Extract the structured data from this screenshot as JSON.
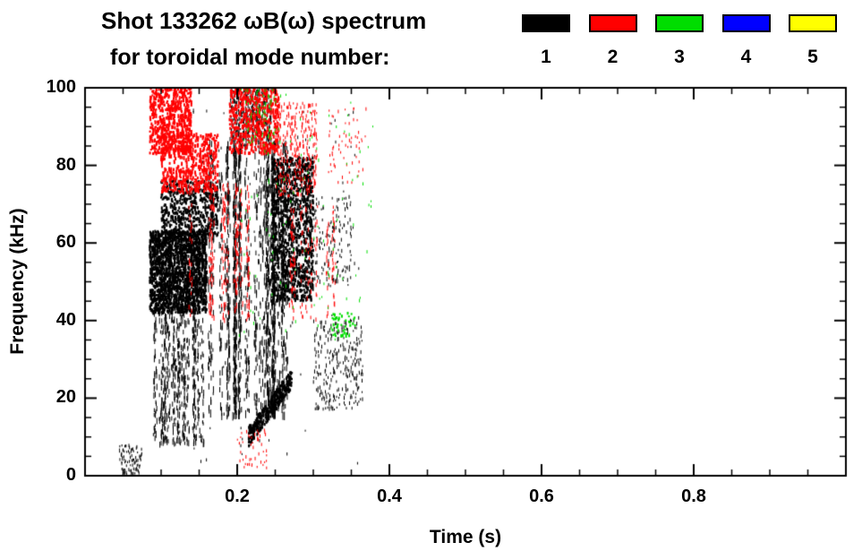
{
  "chart_data": {
    "type": "scatter",
    "title": "Shot 133262 ωB(ω) spectrum",
    "subtitle": "for toroidal mode number:",
    "xlabel": "Time (s)",
    "ylabel": "Frequency (kHz)",
    "xlim": [
      0,
      1
    ],
    "ylim": [
      0,
      100
    ],
    "xticks_major": [
      0.2,
      0.4,
      0.6,
      0.8
    ],
    "xtick_minor_step": 0.05,
    "yticks_major": [
      0,
      20,
      40,
      60,
      80,
      100
    ],
    "ytick_minor_step": 5,
    "grid": false,
    "legend_position": "top-right",
    "legend": [
      {
        "label": "1",
        "color": "#000000"
      },
      {
        "label": "2",
        "color": "#ff0000"
      },
      {
        "label": "3",
        "color": "#00dd00"
      },
      {
        "label": "4",
        "color": "#0000ff"
      },
      {
        "label": "5",
        "color": "#ffff00"
      }
    ],
    "series": [
      {
        "name": "n=1",
        "color": "#000000",
        "clusters": [
          {
            "t": [
              0.085,
              0.16
            ],
            "f": [
              42,
              63
            ],
            "n": 1800,
            "w": 2,
            "h": [
              2,
              5
            ]
          },
          {
            "t": [
              0.1,
              0.175
            ],
            "f": [
              62,
              76
            ],
            "n": 600,
            "w": 2,
            "h": [
              2,
              4
            ]
          },
          {
            "t": [
              0.088,
              0.155
            ],
            "f": [
              8,
              42
            ],
            "n": 600,
            "cols": 22,
            "w": 1,
            "h": [
              3,
              8
            ]
          },
          {
            "t": [
              0.16,
              0.265
            ],
            "f": [
              15,
              86
            ],
            "n": 1500,
            "cols": 34,
            "w": 1,
            "h": [
              4,
              10
            ]
          },
          {
            "t": [
              0.245,
              0.3
            ],
            "f": [
              45,
              82
            ],
            "n": 1100,
            "w": 2,
            "h": [
              2,
              5
            ]
          },
          {
            "t": [
              0.215,
              0.272
            ],
            "f": [
              10,
              25
            ],
            "n": 380,
            "trend": 1,
            "spread": 5,
            "w": 2,
            "h": [
              2,
              4
            ]
          },
          {
            "t": [
              0.3,
              0.365
            ],
            "f": [
              17,
              40
            ],
            "n": 260,
            "w": 1,
            "h": [
              2,
              5
            ]
          },
          {
            "t": [
              0.045,
              0.075
            ],
            "f": [
              0,
              8
            ],
            "n": 90,
            "w": 1,
            "h": [
              2,
              4
            ]
          },
          {
            "t": [
              0.19,
              0.245
            ],
            "f": [
              86,
              100
            ],
            "n": 420,
            "w": 1,
            "h": [
              2,
              6
            ]
          },
          {
            "t": [
              0.3,
              0.35
            ],
            "f": [
              50,
              72
            ],
            "n": 140,
            "w": 1,
            "h": [
              2,
              5
            ]
          },
          {
            "t": [
              0.14,
              0.36
            ],
            "f": [
              3,
              95
            ],
            "n": 130,
            "w": 1,
            "h": [
              2,
              4
            ]
          }
        ]
      },
      {
        "name": "n=2",
        "color": "#ff0000",
        "clusters": [
          {
            "t": [
              0.085,
              0.14
            ],
            "f": [
              83,
              100
            ],
            "n": 600,
            "w": 2,
            "h": [
              2,
              5
            ]
          },
          {
            "t": [
              0.1,
              0.175
            ],
            "f": [
              73,
              88
            ],
            "n": 500,
            "w": 2,
            "h": [
              2,
              5
            ]
          },
          {
            "t": [
              0.19,
              0.255
            ],
            "f": [
              83,
              100
            ],
            "n": 520,
            "w": 2,
            "h": [
              2,
              5
            ]
          },
          {
            "t": [
              0.25,
              0.305
            ],
            "f": [
              72,
              96
            ],
            "n": 330,
            "w": 1,
            "h": [
              2,
              5
            ]
          },
          {
            "t": [
              0.13,
              0.22
            ],
            "f": [
              40,
              75
            ],
            "n": 260,
            "cols": 14,
            "w": 1,
            "h": [
              3,
              7
            ]
          },
          {
            "t": [
              0.27,
              0.33
            ],
            "f": [
              40,
              70
            ],
            "n": 150,
            "cols": 10,
            "w": 1,
            "h": [
              3,
              6
            ]
          },
          {
            "t": [
              0.2,
              0.24
            ],
            "f": [
              2,
              12
            ],
            "n": 50,
            "w": 1,
            "h": [
              2,
              4
            ]
          },
          {
            "t": [
              0.32,
              0.37
            ],
            "f": [
              75,
              95
            ],
            "n": 60,
            "w": 1,
            "h": [
              2,
              4
            ]
          }
        ]
      },
      {
        "name": "n=3",
        "color": "#00dd00",
        "clusters": [
          {
            "t": [
              0.2,
              0.38
            ],
            "f": [
              35,
              100
            ],
            "n": 110,
            "w": 1,
            "h": [
              2,
              4
            ]
          },
          {
            "t": [
              0.325,
              0.355
            ],
            "f": [
              36,
              42
            ],
            "n": 40,
            "w": 2,
            "h": [
              2,
              4
            ]
          },
          {
            "t": [
              0.21,
              0.25
            ],
            "f": [
              85,
              100
            ],
            "n": 60,
            "w": 1,
            "h": [
              2,
              4
            ]
          }
        ]
      },
      {
        "name": "n=4",
        "color": "#0000ff",
        "clusters": []
      },
      {
        "name": "n=5",
        "color": "#ffff00",
        "clusters": []
      }
    ]
  }
}
